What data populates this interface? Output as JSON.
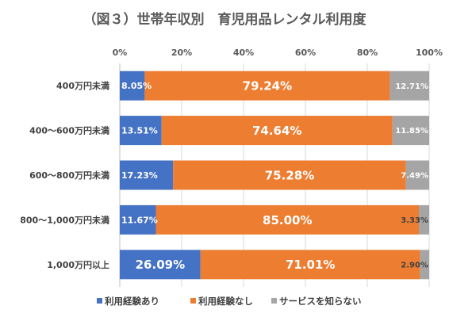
{
  "chart_data": {
    "type": "bar",
    "orientation": "horizontal",
    "stacked": true,
    "percent_stacked": true,
    "title": "（図３）世帯年収別　育児用品レンタル利用度",
    "categories": [
      "400万円未満",
      "400～600万円未満",
      "600～800万円未満",
      "800～1,000万円未満",
      "1,000万円以上"
    ],
    "series": [
      {
        "name": "利用経験あり",
        "color": "#4472C4",
        "values": [
          8.05,
          13.51,
          17.23,
          11.67,
          26.09
        ]
      },
      {
        "name": "利用経験なし",
        "color": "#ED7D31",
        "values": [
          79.24,
          74.64,
          75.28,
          85.0,
          71.01
        ]
      },
      {
        "name": "サービスを知らない",
        "color": "#A5A5A5",
        "values": [
          12.71,
          11.85,
          7.49,
          3.33,
          2.9
        ]
      }
    ],
    "data_labels": [
      [
        "8.05%",
        "79.24%",
        "12.71%"
      ],
      [
        "13.51%",
        "74.64%",
        "11.85%"
      ],
      [
        "17.23%",
        "75.28%",
        "7.49%"
      ],
      [
        "11.67%",
        "85.00%",
        "3.33%"
      ],
      [
        "26.09%",
        "71.01%",
        "2.90%"
      ]
    ],
    "xlim": [
      0,
      100
    ],
    "x_ticks": [
      "0%",
      "20%",
      "40%",
      "60%",
      "80%",
      "100%"
    ],
    "x_axis_position": "top",
    "grid": true,
    "legend_position": "bottom"
  }
}
